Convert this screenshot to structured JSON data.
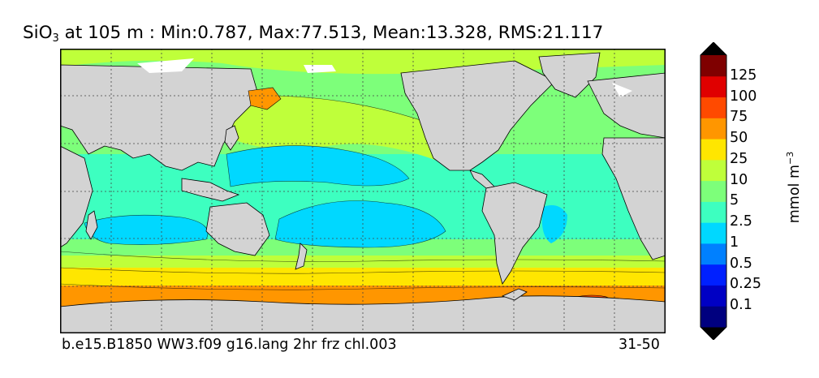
{
  "title": {
    "variable": "SiO",
    "subscript": "3",
    "rest": " at 105 m : Min:0.787, Max:77.513, Mean:13.328, RMS:21.117"
  },
  "footer": {
    "case_name": "b.e15.B1850 WW3.f09 g16.lang 2hr frz chl.003",
    "years": "31-50"
  },
  "colorbar": {
    "unit_base": "mmol m",
    "unit_exponent": "−3",
    "levels": [
      {
        "label": "",
        "color": "#00007f"
      },
      {
        "label": "0.1",
        "color": "#0000c4"
      },
      {
        "label": "0.25",
        "color": "#0020ff"
      },
      {
        "label": "0.5",
        "color": "#0080ff"
      },
      {
        "label": "1",
        "color": "#00d8ff"
      },
      {
        "label": "2.5",
        "color": "#3dffc0"
      },
      {
        "label": "5",
        "color": "#7dff7a"
      },
      {
        "label": "10",
        "color": "#bfff3a"
      },
      {
        "label": "25",
        "color": "#ffe600"
      },
      {
        "label": "50",
        "color": "#ff9600"
      },
      {
        "label": "75",
        "color": "#ff4a00"
      },
      {
        "label": "100",
        "color": "#e00000"
      },
      {
        "label": "125",
        "color": "#7f0000"
      }
    ]
  },
  "map_colors": {
    "land": "#d3d3d3",
    "ice": "#ffffff",
    "grid": "#444444"
  }
}
